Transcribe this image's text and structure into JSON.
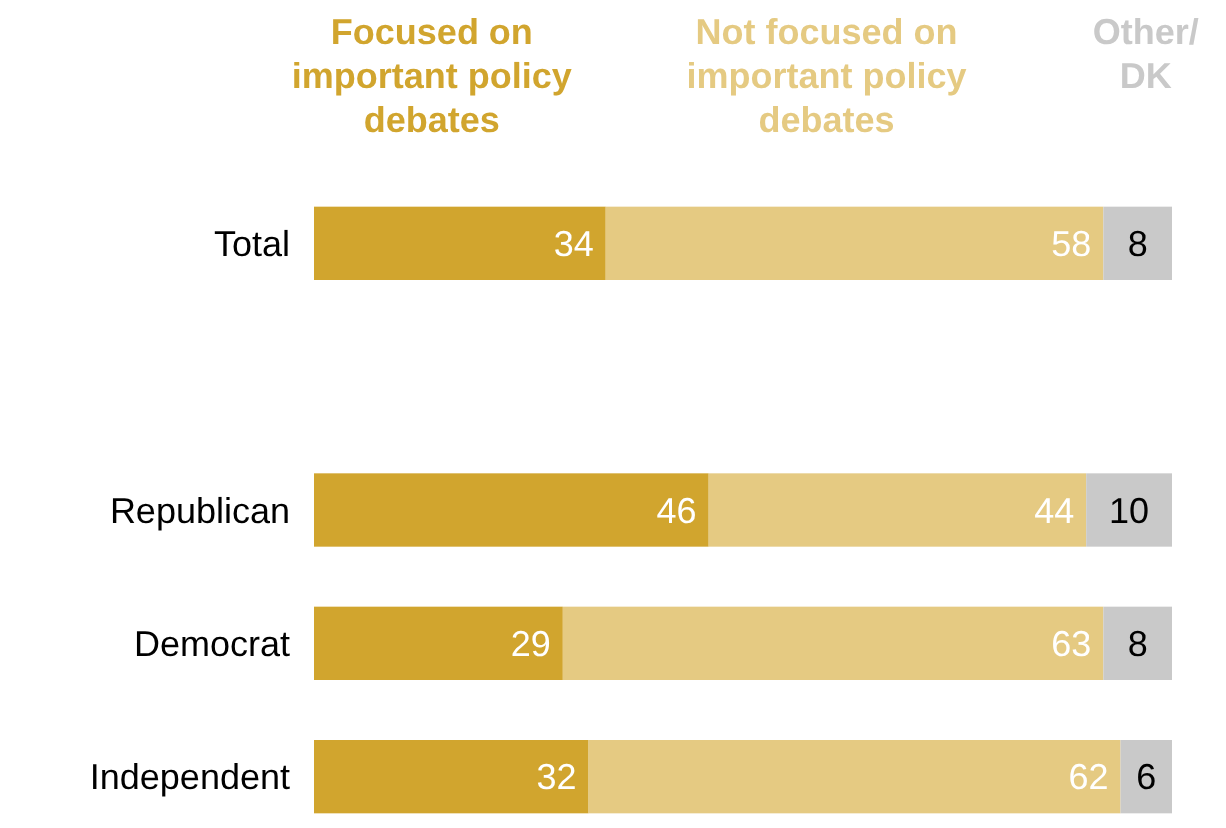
{
  "chart_data": {
    "type": "bar",
    "orientation": "horizontal",
    "stacked": true,
    "data_labels": true,
    "legend": "top",
    "categories": [
      "Total",
      null,
      "Republican",
      "Democrat",
      "Independent"
    ],
    "series": [
      {
        "name": "Focused on important policy debates",
        "color": "#d1a52e",
        "values": [
          34,
          null,
          46,
          29,
          32
        ]
      },
      {
        "name": "Not focused on important policy debates",
        "color": "#e5ca82",
        "values": [
          58,
          null,
          44,
          63,
          62
        ]
      },
      {
        "name": "Other/DK",
        "color": "#c9c9c9",
        "values": [
          8,
          null,
          10,
          8,
          6
        ]
      }
    ]
  }
}
